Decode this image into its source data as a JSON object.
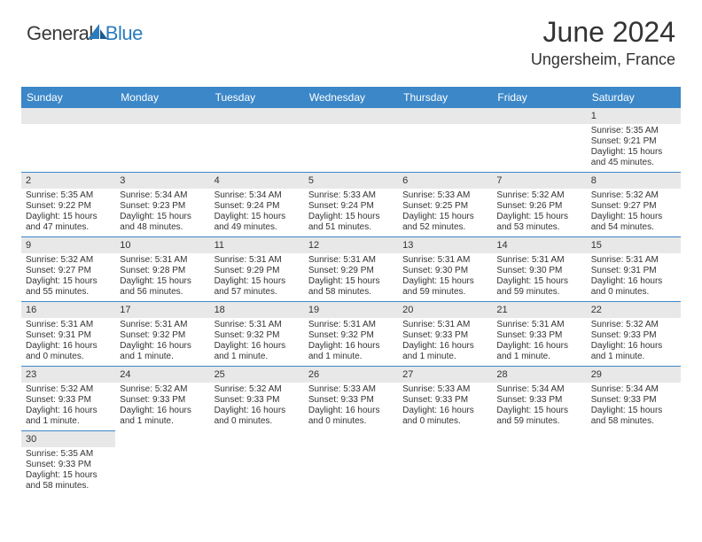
{
  "logo": {
    "general": "General",
    "blue": "Blue"
  },
  "title": "June 2024",
  "location": "Ungersheim, France",
  "colors": {
    "header_bg": "#3b87c8",
    "daynum_bg": "#e8e8e8"
  },
  "weekdays": [
    "Sunday",
    "Monday",
    "Tuesday",
    "Wednesday",
    "Thursday",
    "Friday",
    "Saturday"
  ],
  "weeks": [
    [
      null,
      null,
      null,
      null,
      null,
      null,
      {
        "n": "1",
        "sr": "Sunrise: 5:35 AM",
        "ss": "Sunset: 9:21 PM",
        "d1": "Daylight: 15 hours",
        "d2": "and 45 minutes."
      }
    ],
    [
      {
        "n": "2",
        "sr": "Sunrise: 5:35 AM",
        "ss": "Sunset: 9:22 PM",
        "d1": "Daylight: 15 hours",
        "d2": "and 47 minutes."
      },
      {
        "n": "3",
        "sr": "Sunrise: 5:34 AM",
        "ss": "Sunset: 9:23 PM",
        "d1": "Daylight: 15 hours",
        "d2": "and 48 minutes."
      },
      {
        "n": "4",
        "sr": "Sunrise: 5:34 AM",
        "ss": "Sunset: 9:24 PM",
        "d1": "Daylight: 15 hours",
        "d2": "and 49 minutes."
      },
      {
        "n": "5",
        "sr": "Sunrise: 5:33 AM",
        "ss": "Sunset: 9:24 PM",
        "d1": "Daylight: 15 hours",
        "d2": "and 51 minutes."
      },
      {
        "n": "6",
        "sr": "Sunrise: 5:33 AM",
        "ss": "Sunset: 9:25 PM",
        "d1": "Daylight: 15 hours",
        "d2": "and 52 minutes."
      },
      {
        "n": "7",
        "sr": "Sunrise: 5:32 AM",
        "ss": "Sunset: 9:26 PM",
        "d1": "Daylight: 15 hours",
        "d2": "and 53 minutes."
      },
      {
        "n": "8",
        "sr": "Sunrise: 5:32 AM",
        "ss": "Sunset: 9:27 PM",
        "d1": "Daylight: 15 hours",
        "d2": "and 54 minutes."
      }
    ],
    [
      {
        "n": "9",
        "sr": "Sunrise: 5:32 AM",
        "ss": "Sunset: 9:27 PM",
        "d1": "Daylight: 15 hours",
        "d2": "and 55 minutes."
      },
      {
        "n": "10",
        "sr": "Sunrise: 5:31 AM",
        "ss": "Sunset: 9:28 PM",
        "d1": "Daylight: 15 hours",
        "d2": "and 56 minutes."
      },
      {
        "n": "11",
        "sr": "Sunrise: 5:31 AM",
        "ss": "Sunset: 9:29 PM",
        "d1": "Daylight: 15 hours",
        "d2": "and 57 minutes."
      },
      {
        "n": "12",
        "sr": "Sunrise: 5:31 AM",
        "ss": "Sunset: 9:29 PM",
        "d1": "Daylight: 15 hours",
        "d2": "and 58 minutes."
      },
      {
        "n": "13",
        "sr": "Sunrise: 5:31 AM",
        "ss": "Sunset: 9:30 PM",
        "d1": "Daylight: 15 hours",
        "d2": "and 59 minutes."
      },
      {
        "n": "14",
        "sr": "Sunrise: 5:31 AM",
        "ss": "Sunset: 9:30 PM",
        "d1": "Daylight: 15 hours",
        "d2": "and 59 minutes."
      },
      {
        "n": "15",
        "sr": "Sunrise: 5:31 AM",
        "ss": "Sunset: 9:31 PM",
        "d1": "Daylight: 16 hours",
        "d2": "and 0 minutes."
      }
    ],
    [
      {
        "n": "16",
        "sr": "Sunrise: 5:31 AM",
        "ss": "Sunset: 9:31 PM",
        "d1": "Daylight: 16 hours",
        "d2": "and 0 minutes."
      },
      {
        "n": "17",
        "sr": "Sunrise: 5:31 AM",
        "ss": "Sunset: 9:32 PM",
        "d1": "Daylight: 16 hours",
        "d2": "and 1 minute."
      },
      {
        "n": "18",
        "sr": "Sunrise: 5:31 AM",
        "ss": "Sunset: 9:32 PM",
        "d1": "Daylight: 16 hours",
        "d2": "and 1 minute."
      },
      {
        "n": "19",
        "sr": "Sunrise: 5:31 AM",
        "ss": "Sunset: 9:32 PM",
        "d1": "Daylight: 16 hours",
        "d2": "and 1 minute."
      },
      {
        "n": "20",
        "sr": "Sunrise: 5:31 AM",
        "ss": "Sunset: 9:33 PM",
        "d1": "Daylight: 16 hours",
        "d2": "and 1 minute."
      },
      {
        "n": "21",
        "sr": "Sunrise: 5:31 AM",
        "ss": "Sunset: 9:33 PM",
        "d1": "Daylight: 16 hours",
        "d2": "and 1 minute."
      },
      {
        "n": "22",
        "sr": "Sunrise: 5:32 AM",
        "ss": "Sunset: 9:33 PM",
        "d1": "Daylight: 16 hours",
        "d2": "and 1 minute."
      }
    ],
    [
      {
        "n": "23",
        "sr": "Sunrise: 5:32 AM",
        "ss": "Sunset: 9:33 PM",
        "d1": "Daylight: 16 hours",
        "d2": "and 1 minute."
      },
      {
        "n": "24",
        "sr": "Sunrise: 5:32 AM",
        "ss": "Sunset: 9:33 PM",
        "d1": "Daylight: 16 hours",
        "d2": "and 1 minute."
      },
      {
        "n": "25",
        "sr": "Sunrise: 5:32 AM",
        "ss": "Sunset: 9:33 PM",
        "d1": "Daylight: 16 hours",
        "d2": "and 0 minutes."
      },
      {
        "n": "26",
        "sr": "Sunrise: 5:33 AM",
        "ss": "Sunset: 9:33 PM",
        "d1": "Daylight: 16 hours",
        "d2": "and 0 minutes."
      },
      {
        "n": "27",
        "sr": "Sunrise: 5:33 AM",
        "ss": "Sunset: 9:33 PM",
        "d1": "Daylight: 16 hours",
        "d2": "and 0 minutes."
      },
      {
        "n": "28",
        "sr": "Sunrise: 5:34 AM",
        "ss": "Sunset: 9:33 PM",
        "d1": "Daylight: 15 hours",
        "d2": "and 59 minutes."
      },
      {
        "n": "29",
        "sr": "Sunrise: 5:34 AM",
        "ss": "Sunset: 9:33 PM",
        "d1": "Daylight: 15 hours",
        "d2": "and 58 minutes."
      }
    ],
    [
      {
        "n": "30",
        "sr": "Sunrise: 5:35 AM",
        "ss": "Sunset: 9:33 PM",
        "d1": "Daylight: 15 hours",
        "d2": "and 58 minutes."
      },
      null,
      null,
      null,
      null,
      null,
      null
    ]
  ]
}
